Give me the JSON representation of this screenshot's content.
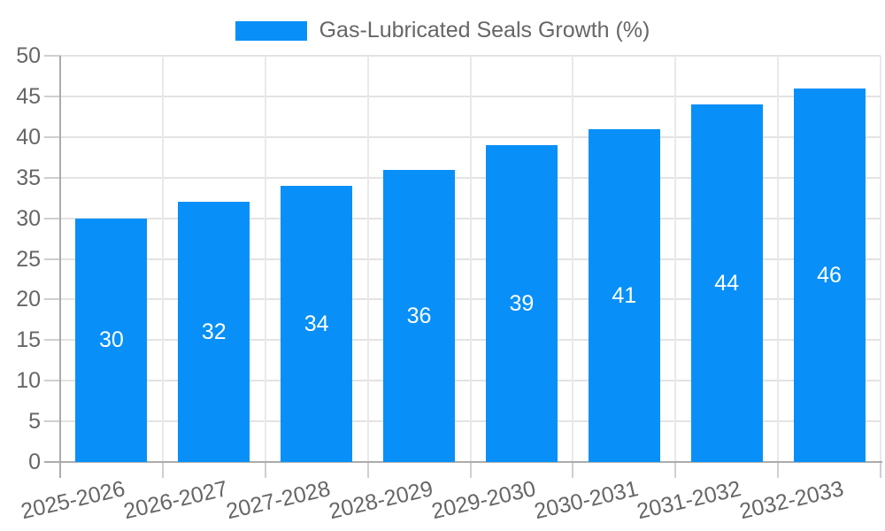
{
  "chart_data": {
    "type": "bar",
    "title": "",
    "legend": "Gas-Lubricated Seals Growth (%)",
    "legend_position": "top",
    "categories": [
      "2025-2026",
      "2026-2027",
      "2027-2028",
      "2028-2029",
      "2029-2030",
      "2030-2031",
      "2031-2032",
      "2032-2033"
    ],
    "values": [
      30,
      32,
      34,
      36,
      39,
      41,
      44,
      46
    ],
    "data_labels": [
      "30",
      "32",
      "34",
      "36",
      "39",
      "41",
      "44",
      "46"
    ],
    "xlabel": "",
    "ylabel": "",
    "ylim": [
      0,
      50
    ],
    "yticks": [
      0,
      5,
      10,
      15,
      20,
      25,
      30,
      35,
      40,
      45,
      50
    ],
    "grid": true,
    "style": {
      "bar_color": "#0890F8",
      "value_label_color": "#FFFFFF",
      "axis_text_color": "#666666",
      "legend_text_color": "#666666",
      "axis_line_color": "#ACACAC",
      "tick_mark_color": "#CFCFCF",
      "grid_color_horizontal": "#E3E3E3",
      "grid_color_vertical": "#E9E9E9",
      "background_color": "#FFFFFF"
    }
  }
}
